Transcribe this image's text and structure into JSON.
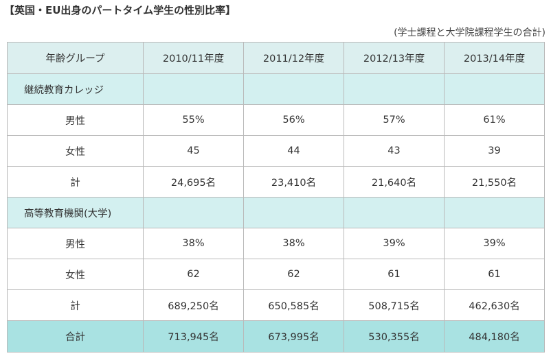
{
  "title": "【英国・EU出身のパートタイム学生の性別比率】",
  "note": "(学士課程と大学院課程学生の合計)",
  "table": {
    "header": [
      "年齢グループ",
      "2010/11年度",
      "2011/12年度",
      "2012/13年度",
      "2013/14年度"
    ],
    "sections": [
      {
        "name": "継続教育カレッジ",
        "rows": [
          {
            "label": "男性",
            "values": [
              "55%",
              "56%",
              "57%",
              "61%"
            ]
          },
          {
            "label": "女性",
            "values": [
              "45",
              "44",
              "43",
              "39"
            ]
          },
          {
            "label": "計",
            "values": [
              "24,695名",
              "23,410名",
              "21,640名",
              "21,550名"
            ]
          }
        ]
      },
      {
        "name": "高等教育機関(大学)",
        "rows": [
          {
            "label": "男性",
            "values": [
              "38%",
              "38%",
              "39%",
              "39%"
            ]
          },
          {
            "label": "女性",
            "values": [
              "62",
              "62",
              "61",
              "61"
            ]
          },
          {
            "label": "計",
            "values": [
              "689,250名",
              "650,585名",
              "508,715名",
              "462,630名"
            ]
          }
        ]
      }
    ],
    "total": {
      "label": "合計",
      "values": [
        "713,945名",
        "673,995名",
        "530,355名",
        "484,180名"
      ]
    }
  },
  "colors": {
    "header_bg": "#dcefef",
    "section_bg": "#d3f0f0",
    "total_bg": "#a9e2e2",
    "border": "#b9b9b9"
  }
}
